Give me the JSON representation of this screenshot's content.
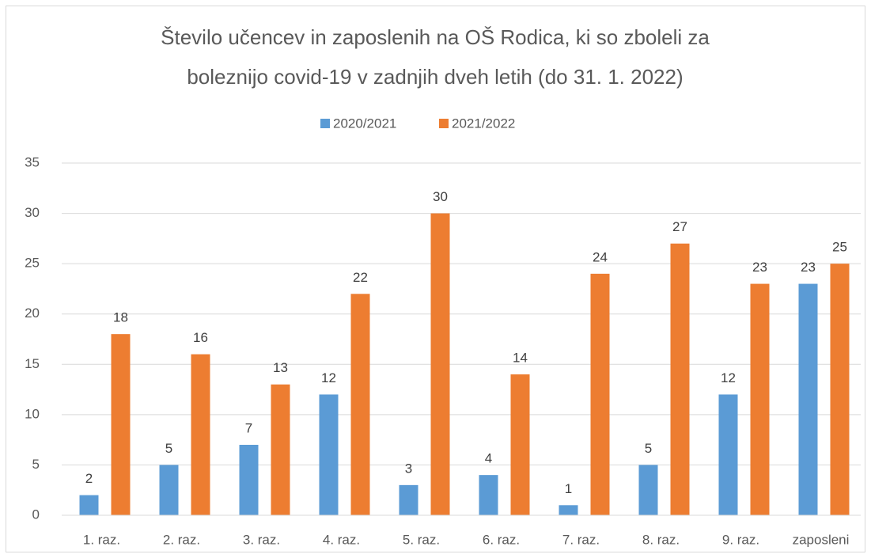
{
  "chart_data": {
    "type": "bar",
    "title": [
      "Število učencev in zaposlenih na OŠ Rodica, ki so zboleli za",
      "boleznijo covid-19 v zadnjih dveh letih (do 31. 1. 2022)"
    ],
    "categories": [
      "1. raz.",
      "2. raz.",
      "3. raz.",
      "4. raz.",
      "5. raz.",
      "6. raz.",
      "7. raz.",
      "8. raz.",
      "9. raz.",
      "zaposleni"
    ],
    "series": [
      {
        "name": "2020/2021",
        "color": "#5b9bd5",
        "values": [
          2,
          5,
          7,
          12,
          3,
          4,
          1,
          5,
          12,
          23
        ]
      },
      {
        "name": "2021/2022",
        "color": "#ed7d31",
        "values": [
          18,
          16,
          13,
          22,
          30,
          14,
          24,
          27,
          23,
          25
        ]
      }
    ],
    "ylim": [
      0,
      35
    ],
    "yticks": [
      0,
      5,
      10,
      15,
      20,
      25,
      30,
      35
    ],
    "grid": true,
    "legend": "top"
  }
}
